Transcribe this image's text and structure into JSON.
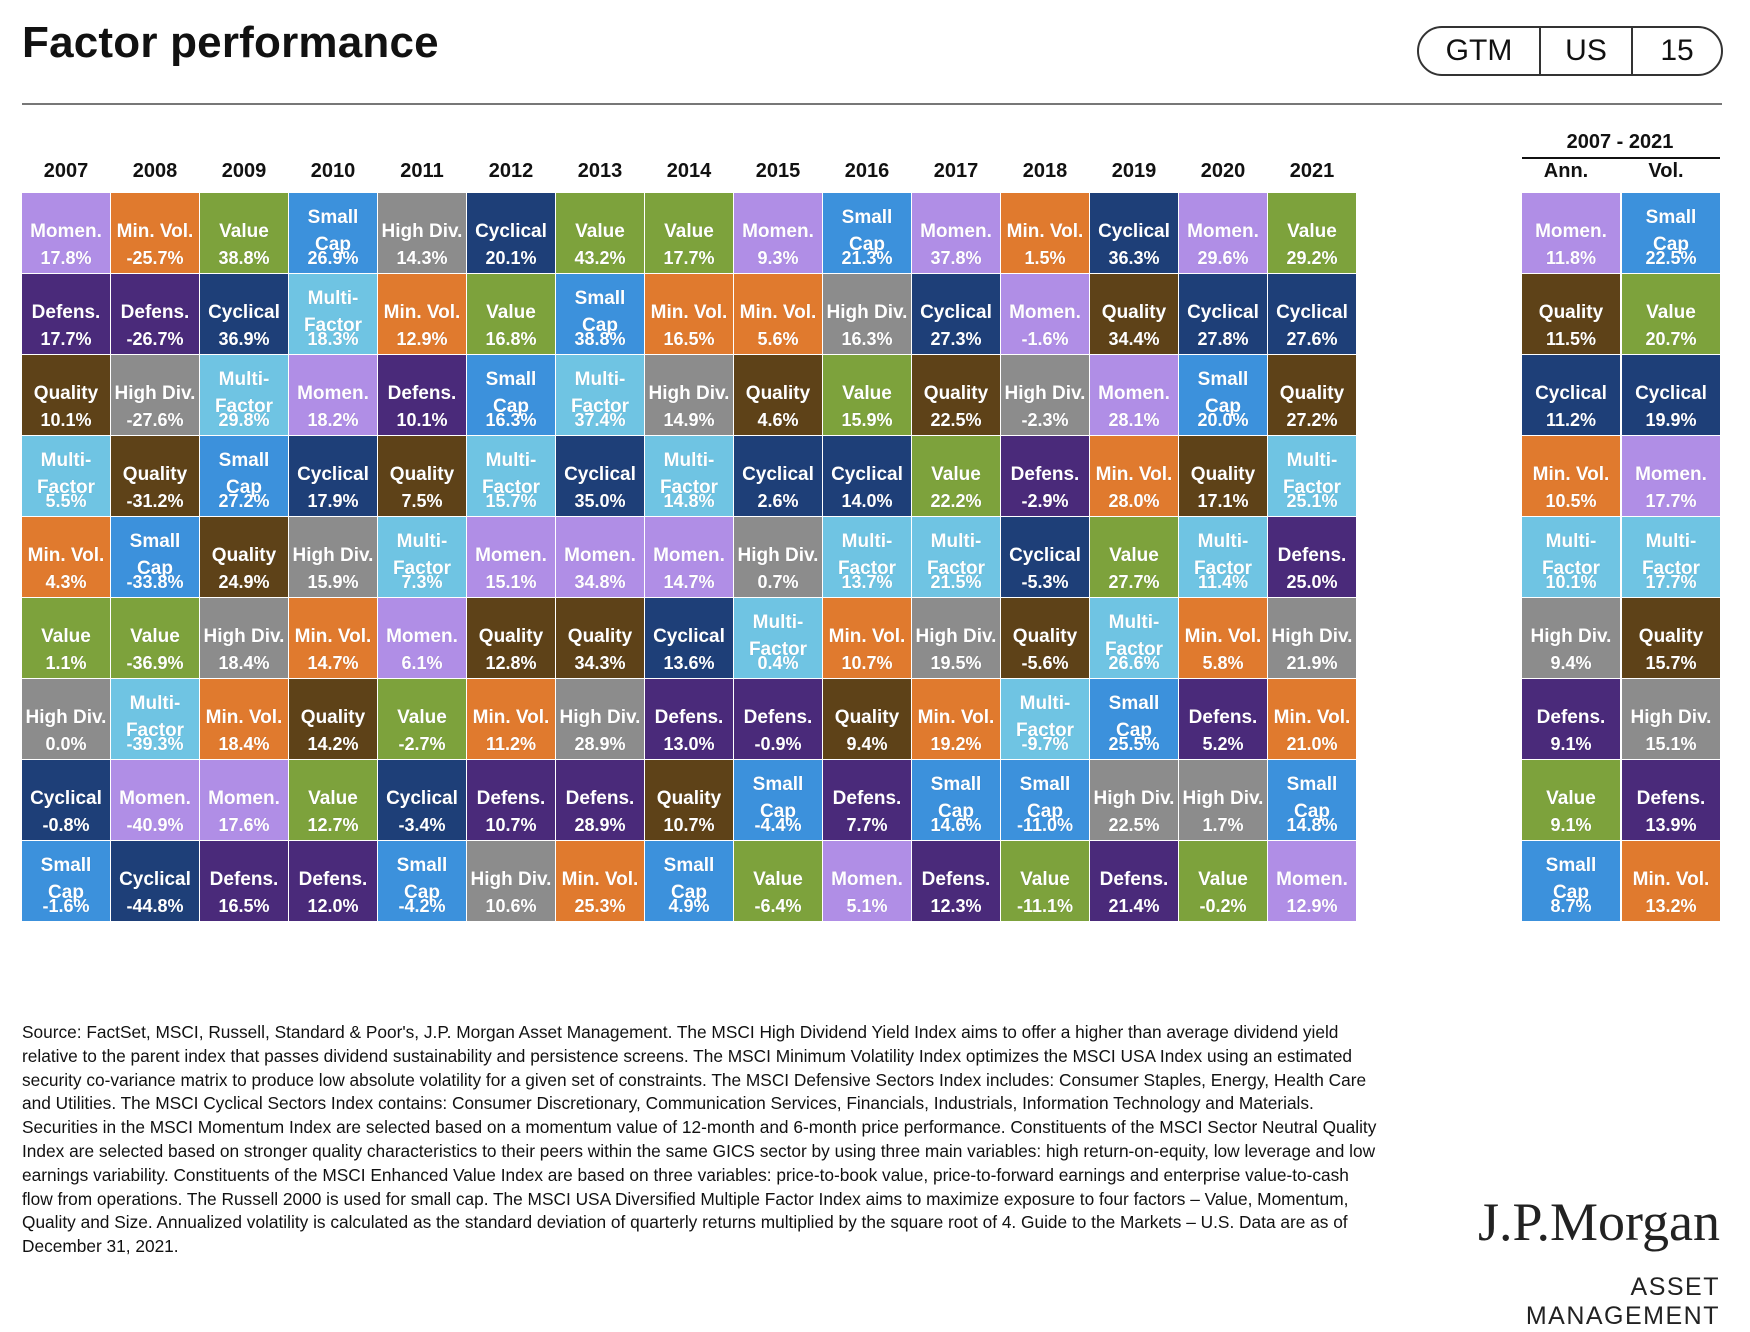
{
  "header": {
    "title": "Factor performance",
    "tags": [
      "GTM",
      "US",
      "15"
    ]
  },
  "colors": {
    "Momen.": "#b08ee6",
    "Min. Vol.": "#e07a2e",
    "Value": "#7da23c",
    "Small Cap": "#3c91dc",
    "High Div.": "#8c8c8c",
    "Cyclical": "#1e3f78",
    "Defens.": "#4a2a7a",
    "Multi-Factor": "#6fc4e3",
    "Quality": "#5e4218"
  },
  "chart_data": {
    "type": "table",
    "title": "Factor performance",
    "years": [
      "2007",
      "2008",
      "2009",
      "2010",
      "2011",
      "2012",
      "2013",
      "2014",
      "2015",
      "2016",
      "2017",
      "2018",
      "2019",
      "2020",
      "2021"
    ],
    "summary_header": "2007 - 2021",
    "summary_columns": [
      "Ann.",
      "Vol."
    ],
    "columns": [
      [
        [
          "Momen.",
          "17.8%"
        ],
        [
          "Defens.",
          "17.7%"
        ],
        [
          "Quality",
          "10.1%"
        ],
        [
          "Multi-Factor",
          "5.5%"
        ],
        [
          "Min. Vol.",
          "4.3%"
        ],
        [
          "Value",
          "1.1%"
        ],
        [
          "High Div.",
          "0.0%"
        ],
        [
          "Cyclical",
          "-0.8%"
        ],
        [
          "Small Cap",
          "-1.6%"
        ]
      ],
      [
        [
          "Min. Vol.",
          "-25.7%"
        ],
        [
          "Defens.",
          "-26.7%"
        ],
        [
          "High Div.",
          "-27.6%"
        ],
        [
          "Quality",
          "-31.2%"
        ],
        [
          "Small Cap",
          "-33.8%"
        ],
        [
          "Value",
          "-36.9%"
        ],
        [
          "Multi-Factor",
          "-39.3%"
        ],
        [
          "Momen.",
          "-40.9%"
        ],
        [
          "Cyclical",
          "-44.8%"
        ]
      ],
      [
        [
          "Value",
          "38.8%"
        ],
        [
          "Cyclical",
          "36.9%"
        ],
        [
          "Multi-Factor",
          "29.8%"
        ],
        [
          "Small Cap",
          "27.2%"
        ],
        [
          "Quality",
          "24.9%"
        ],
        [
          "High Div.",
          "18.4%"
        ],
        [
          "Min. Vol.",
          "18.4%"
        ],
        [
          "Momen.",
          "17.6%"
        ],
        [
          "Defens.",
          "16.5%"
        ]
      ],
      [
        [
          "Small Cap",
          "26.9%"
        ],
        [
          "Multi-Factor",
          "18.3%"
        ],
        [
          "Momen.",
          "18.2%"
        ],
        [
          "Cyclical",
          "17.9%"
        ],
        [
          "High Div.",
          "15.9%"
        ],
        [
          "Min. Vol.",
          "14.7%"
        ],
        [
          "Quality",
          "14.2%"
        ],
        [
          "Value",
          "12.7%"
        ],
        [
          "Defens.",
          "12.0%"
        ]
      ],
      [
        [
          "High Div.",
          "14.3%"
        ],
        [
          "Min. Vol.",
          "12.9%"
        ],
        [
          "Defens.",
          "10.1%"
        ],
        [
          "Quality",
          "7.5%"
        ],
        [
          "Multi-Factor",
          "7.3%"
        ],
        [
          "Momen.",
          "6.1%"
        ],
        [
          "Value",
          "-2.7%"
        ],
        [
          "Cyclical",
          "-3.4%"
        ],
        [
          "Small Cap",
          "-4.2%"
        ]
      ],
      [
        [
          "Cyclical",
          "20.1%"
        ],
        [
          "Value",
          "16.8%"
        ],
        [
          "Small Cap",
          "16.3%"
        ],
        [
          "Multi-Factor",
          "15.7%"
        ],
        [
          "Momen.",
          "15.1%"
        ],
        [
          "Quality",
          "12.8%"
        ],
        [
          "Min. Vol.",
          "11.2%"
        ],
        [
          "Defens.",
          "10.7%"
        ],
        [
          "High Div.",
          "10.6%"
        ]
      ],
      [
        [
          "Value",
          "43.2%"
        ],
        [
          "Small Cap",
          "38.8%"
        ],
        [
          "Multi-Factor",
          "37.4%"
        ],
        [
          "Cyclical",
          "35.0%"
        ],
        [
          "Momen.",
          "34.8%"
        ],
        [
          "Quality",
          "34.3%"
        ],
        [
          "High Div.",
          "28.9%"
        ],
        [
          "Defens.",
          "28.9%"
        ],
        [
          "Min. Vol.",
          "25.3%"
        ]
      ],
      [
        [
          "Value",
          "17.7%"
        ],
        [
          "Min. Vol.",
          "16.5%"
        ],
        [
          "High Div.",
          "14.9%"
        ],
        [
          "Multi-Factor",
          "14.8%"
        ],
        [
          "Momen.",
          "14.7%"
        ],
        [
          "Cyclical",
          "13.6%"
        ],
        [
          "Defens.",
          "13.0%"
        ],
        [
          "Quality",
          "10.7%"
        ],
        [
          "Small Cap",
          "4.9%"
        ]
      ],
      [
        [
          "Momen.",
          "9.3%"
        ],
        [
          "Min. Vol.",
          "5.6%"
        ],
        [
          "Quality",
          "4.6%"
        ],
        [
          "Cyclical",
          "2.6%"
        ],
        [
          "High Div.",
          "0.7%"
        ],
        [
          "Multi-Factor",
          "0.4%"
        ],
        [
          "Defens.",
          "-0.9%"
        ],
        [
          "Small Cap",
          "-4.4%"
        ],
        [
          "Value",
          "-6.4%"
        ]
      ],
      [
        [
          "Small Cap",
          "21.3%"
        ],
        [
          "High Div.",
          "16.3%"
        ],
        [
          "Value",
          "15.9%"
        ],
        [
          "Cyclical",
          "14.0%"
        ],
        [
          "Multi-Factor",
          "13.7%"
        ],
        [
          "Min. Vol.",
          "10.7%"
        ],
        [
          "Quality",
          "9.4%"
        ],
        [
          "Defens.",
          "7.7%"
        ],
        [
          "Momen.",
          "5.1%"
        ]
      ],
      [
        [
          "Momen.",
          "37.8%"
        ],
        [
          "Cyclical",
          "27.3%"
        ],
        [
          "Quality",
          "22.5%"
        ],
        [
          "Value",
          "22.2%"
        ],
        [
          "Multi-Factor",
          "21.5%"
        ],
        [
          "High Div.",
          "19.5%"
        ],
        [
          "Min. Vol.",
          "19.2%"
        ],
        [
          "Small Cap",
          "14.6%"
        ],
        [
          "Defens.",
          "12.3%"
        ]
      ],
      [
        [
          "Min. Vol.",
          "1.5%"
        ],
        [
          "Momen.",
          "-1.6%"
        ],
        [
          "High Div.",
          "-2.3%"
        ],
        [
          "Defens.",
          "-2.9%"
        ],
        [
          "Cyclical",
          "-5.3%"
        ],
        [
          "Quality",
          "-5.6%"
        ],
        [
          "Multi-Factor",
          "-9.7%"
        ],
        [
          "Small Cap",
          "-11.0%"
        ],
        [
          "Value",
          "-11.1%"
        ]
      ],
      [
        [
          "Cyclical",
          "36.3%"
        ],
        [
          "Quality",
          "34.4%"
        ],
        [
          "Momen.",
          "28.1%"
        ],
        [
          "Min. Vol.",
          "28.0%"
        ],
        [
          "Value",
          "27.7%"
        ],
        [
          "Multi-Factor",
          "26.6%"
        ],
        [
          "Small Cap",
          "25.5%"
        ],
        [
          "High Div.",
          "22.5%"
        ],
        [
          "Defens.",
          "21.4%"
        ]
      ],
      [
        [
          "Momen.",
          "29.6%"
        ],
        [
          "Cyclical",
          "27.8%"
        ],
        [
          "Small Cap",
          "20.0%"
        ],
        [
          "Quality",
          "17.1%"
        ],
        [
          "Multi-Factor",
          "11.4%"
        ],
        [
          "Min. Vol.",
          "5.8%"
        ],
        [
          "Defens.",
          "5.2%"
        ],
        [
          "High Div.",
          "1.7%"
        ],
        [
          "Value",
          "-0.2%"
        ]
      ],
      [
        [
          "Value",
          "29.2%"
        ],
        [
          "Cyclical",
          "27.6%"
        ],
        [
          "Quality",
          "27.2%"
        ],
        [
          "Multi-Factor",
          "25.1%"
        ],
        [
          "Defens.",
          "25.0%"
        ],
        [
          "High Div.",
          "21.9%"
        ],
        [
          "Min. Vol.",
          "21.0%"
        ],
        [
          "Small Cap",
          "14.8%"
        ],
        [
          "Momen.",
          "12.9%"
        ]
      ]
    ],
    "summary": [
      [
        [
          "Momen.",
          "11.8%"
        ],
        [
          "Quality",
          "11.5%"
        ],
        [
          "Cyclical",
          "11.2%"
        ],
        [
          "Min. Vol.",
          "10.5%"
        ],
        [
          "Multi-Factor",
          "10.1%"
        ],
        [
          "High Div.",
          "9.4%"
        ],
        [
          "Defens.",
          "9.1%"
        ],
        [
          "Value",
          "9.1%"
        ],
        [
          "Small Cap",
          "8.7%"
        ]
      ],
      [
        [
          "Small Cap",
          "22.5%"
        ],
        [
          "Value",
          "20.7%"
        ],
        [
          "Cyclical",
          "19.9%"
        ],
        [
          "Momen.",
          "17.7%"
        ],
        [
          "Multi-Factor",
          "17.7%"
        ],
        [
          "Quality",
          "15.7%"
        ],
        [
          "High Div.",
          "15.1%"
        ],
        [
          "Defens.",
          "13.9%"
        ],
        [
          "Min. Vol.",
          "13.2%"
        ]
      ]
    ]
  },
  "footnote": "Source: FactSet, MSCI, Russell, Standard & Poor's, J.P. Morgan Asset Management. The MSCI High Dividend Yield Index aims to offer a higher than average dividend yield relative to the parent index that passes dividend sustainability and persistence screens. The MSCI Minimum Volatility Index optimizes the MSCI USA Index using an estimated security co-variance matrix to produce low absolute volatility for a given set of constraints. The MSCI Defensive Sectors Index includes: Consumer Staples, Energy, Health Care and Utilities. The MSCI Cyclical Sectors Index contains: Consumer Discretionary, Communication Services, Financials, Industrials, Information Technology and Materials. Securities in the MSCI Momentum Index are selected based on a momentum value of 12-month and 6-month price performance. Constituents of the MSCI Sector Neutral Quality Index are selected based on stronger quality characteristics to their peers within the same GICS sector by using three main variables: high return-on-equity, low leverage and low earnings variability. Constituents of the MSCI Enhanced Value Index are based on three variables: price-to-book value, price-to-forward earnings and enterprise value-to-cash flow from operations. The Russell 2000 is used for small cap. The MSCI USA Diversified Multiple Factor Index aims to maximize exposure to four factors – Value, Momentum, Quality and Size. Annualized volatility is calculated as the standard deviation of quarterly returns multiplied by the square root of 4. Guide to the Markets – U.S. Data are as of December 31, 2021.",
  "logo": {
    "name": "J.P.Morgan",
    "tagline": "ASSET MANAGEMENT"
  }
}
